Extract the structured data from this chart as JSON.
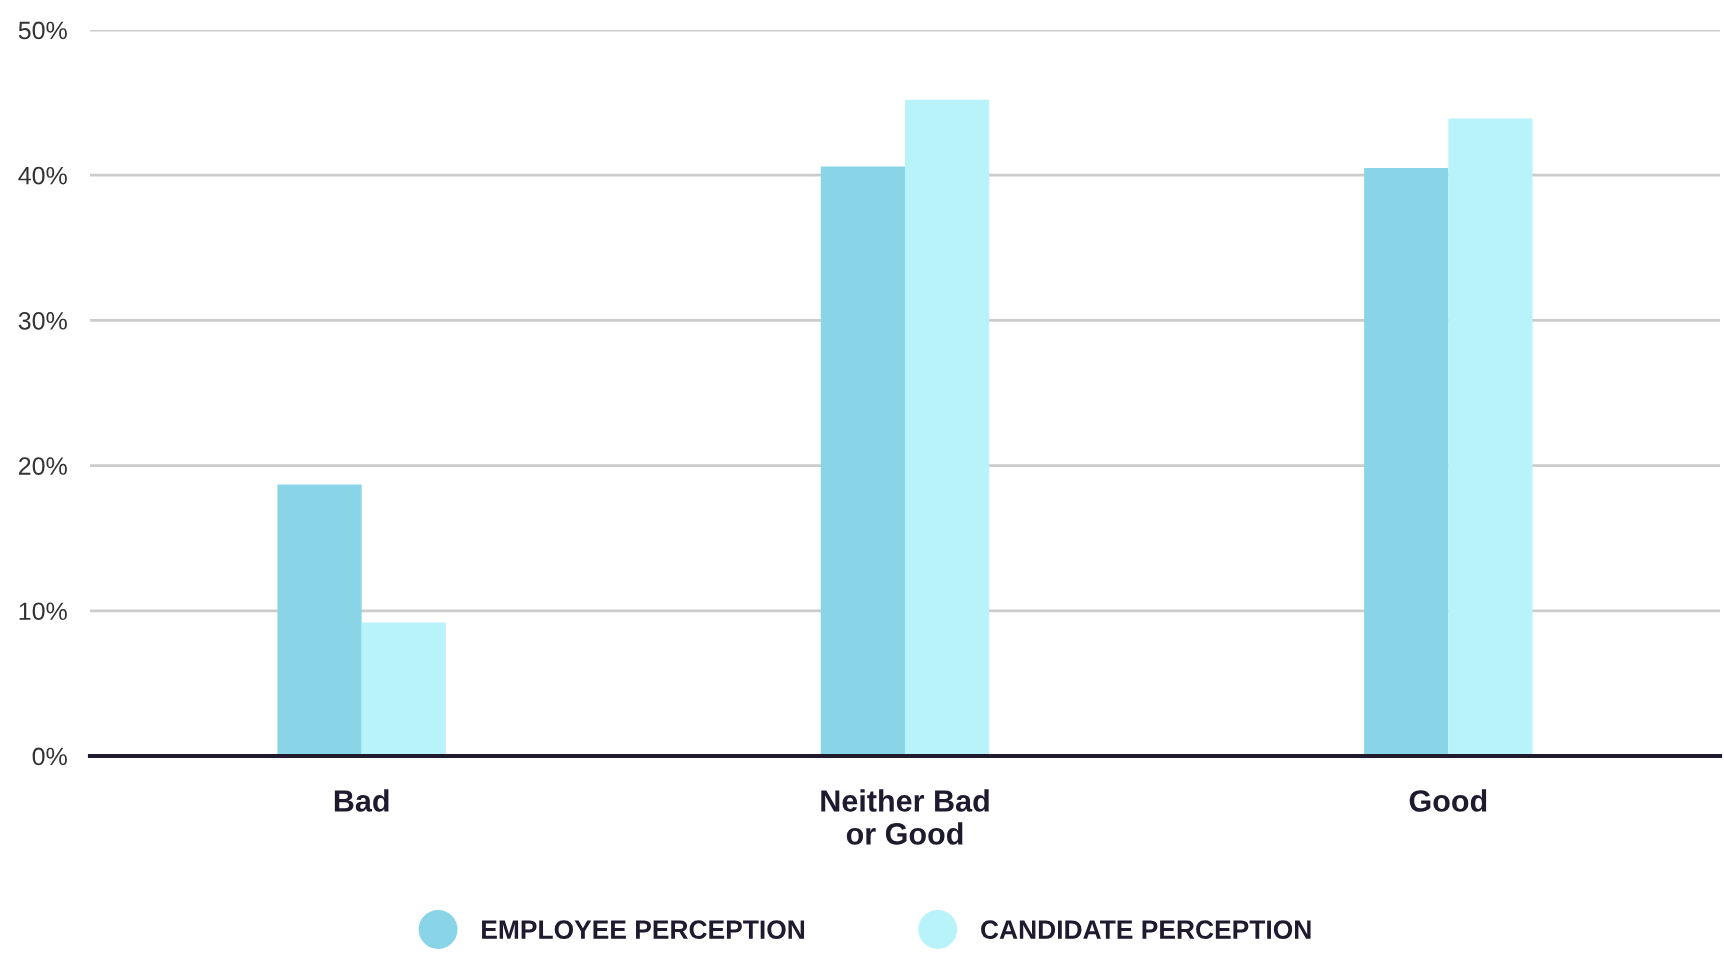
{
  "chart_data": {
    "type": "bar",
    "categories": [
      "Bad",
      "Neither Bad\nor Good",
      "Good"
    ],
    "series": [
      {
        "name": "EMPLOYEE PERCEPTION",
        "color": "#89d4e7",
        "values": [
          18.7,
          40.6,
          40.5
        ]
      },
      {
        "name": "CANDIDATE PERCEPTION",
        "color": "#b9f3fa",
        "values": [
          9.2,
          45.2,
          43.9
        ]
      }
    ],
    "ylim": [
      0,
      50
    ],
    "yticks": [
      {
        "value": 0,
        "label": "0%"
      },
      {
        "value": 10,
        "label": "10%"
      },
      {
        "value": 20,
        "label": "20%"
      },
      {
        "value": 30,
        "label": "30%"
      },
      {
        "value": 40,
        "label": "40%"
      },
      {
        "value": 50,
        "label": "50%"
      }
    ],
    "grid": "y",
    "legend": "bottom"
  }
}
